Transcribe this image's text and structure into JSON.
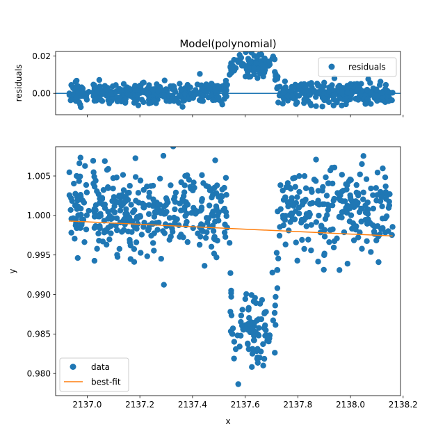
{
  "chart_data": [
    {
      "type": "scatter",
      "title": "Model(polynomial)",
      "xlabel": "",
      "ylabel": "residuals",
      "xlim": [
        2136.88,
        2138.19
      ],
      "ylim": [
        -0.0115,
        0.0225
      ],
      "yticks": [
        0.0,
        0.02
      ],
      "ytick_labels": [
        "0.00",
        "0.02"
      ],
      "xticks": [
        2137.0,
        2137.2,
        2137.4,
        2137.6,
        2137.8,
        2138.0,
        2138.2
      ],
      "show_xtick_labels": false,
      "zero_line": 0.0,
      "legend": {
        "entries": [
          "residuals"
        ],
        "placement": "upper right"
      },
      "series": [
        {
          "name": "residuals",
          "kind": "points",
          "color": "#1f77b4",
          "n_points": 700,
          "x_range": [
            2136.93,
            2138.16
          ],
          "noise_sd": 0.003,
          "transit_bump": {
            "x_start": 2137.53,
            "x_end": 2137.73,
            "depth": 0.015,
            "ramp": 0.02
          }
        }
      ]
    },
    {
      "type": "scatter",
      "title": "",
      "xlabel": "x",
      "ylabel": "y",
      "xlim": [
        2136.88,
        2138.19
      ],
      "ylim": [
        0.9772,
        1.0087
      ],
      "xticks": [
        2137.0,
        2137.2,
        2137.4,
        2137.6,
        2137.8,
        2138.0,
        2138.2
      ],
      "xtick_labels": [
        "2137.0",
        "2137.2",
        "2137.4",
        "2137.6",
        "2137.8",
        "2138.0",
        "2138.2"
      ],
      "yticks": [
        0.98,
        0.985,
        0.99,
        0.995,
        1.0,
        1.005
      ],
      "ytick_labels": [
        "0.980",
        "0.985",
        "0.990",
        "0.995",
        "1.000",
        "1.005"
      ],
      "legend": {
        "entries": [
          "data",
          "best-fit"
        ],
        "placement": "lower left"
      },
      "series": [
        {
          "name": "data",
          "kind": "points",
          "color": "#1f77b4",
          "n_points": 700,
          "x_range": [
            2136.93,
            2138.16
          ],
          "baseline": 1.0008,
          "noise_sd": 0.0027,
          "transit": {
            "x_start": 2137.53,
            "x_end": 2137.73,
            "depth": 0.0155,
            "ramp": 0.02
          }
        },
        {
          "name": "best-fit",
          "kind": "line",
          "color": "#ff7f0e",
          "x": [
            2136.93,
            2138.16
          ],
          "y": [
            0.9993,
            0.9974
          ]
        }
      ]
    }
  ]
}
